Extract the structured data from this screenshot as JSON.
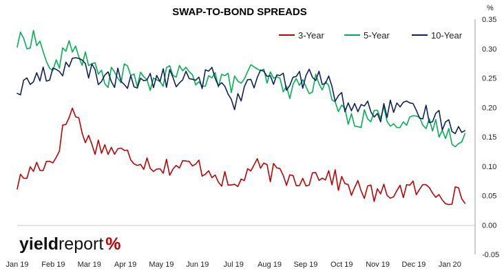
{
  "chart_data": {
    "type": "line",
    "title": "SWAP-TO-BOND SPREADS",
    "y_unit": "%",
    "ylim": [
      -0.05,
      0.35
    ],
    "y_ticks": [
      "0.35",
      "0.30",
      "0.25",
      "0.20",
      "0.15",
      "0.10",
      "0.05",
      "0.00",
      "-0.05"
    ],
    "x_ticks": [
      "Jan 19",
      "Feb 19",
      "Mar 19",
      "Apr 19",
      "May 19",
      "Jun 19",
      "Jul 19",
      "Aug 19",
      "Sep 19",
      "Oct 19",
      "Nov 19",
      "Dec 19",
      "Jan 20"
    ],
    "x": [
      0,
      0.5,
      1,
      1.5,
      2,
      2.5,
      3,
      3.5,
      4,
      4.5,
      5,
      5.5,
      6,
      6.5,
      7,
      7.5,
      8,
      8.5,
      9,
      9.5,
      10,
      10.5,
      11,
      11.5,
      12,
      12.5
    ],
    "grid": false,
    "legend_position": "top-right",
    "series": [
      {
        "name": "3-Year",
        "color": "#c00000",
        "values": [
          0.07,
          0.1,
          0.11,
          0.2,
          0.14,
          0.13,
          0.12,
          0.11,
          0.1,
          0.1,
          0.1,
          0.09,
          0.06,
          0.1,
          0.09,
          0.08,
          0.08,
          0.09,
          0.07,
          0.06,
          0.05,
          0.06,
          0.06,
          0.06,
          0.05,
          0.05
        ]
      },
      {
        "name": "5-Year",
        "color": "#00b050",
        "values": [
          0.31,
          0.32,
          0.26,
          0.31,
          0.27,
          0.25,
          0.26,
          0.24,
          0.25,
          0.26,
          0.25,
          0.25,
          0.24,
          0.26,
          0.25,
          0.23,
          0.24,
          0.24,
          0.19,
          0.18,
          0.19,
          0.18,
          0.17,
          0.17,
          0.15,
          0.15
        ]
      },
      {
        "name": "10-Year",
        "color": "#0d1f5c",
        "values": [
          0.23,
          0.25,
          0.26,
          0.28,
          0.26,
          0.25,
          0.25,
          0.24,
          0.25,
          0.25,
          0.24,
          0.26,
          0.21,
          0.25,
          0.25,
          0.24,
          0.25,
          0.25,
          0.21,
          0.2,
          0.19,
          0.2,
          0.19,
          0.19,
          0.17,
          0.17
        ]
      }
    ]
  },
  "logo": {
    "part1": "yield",
    "part2": "report",
    "symbol": "%"
  }
}
